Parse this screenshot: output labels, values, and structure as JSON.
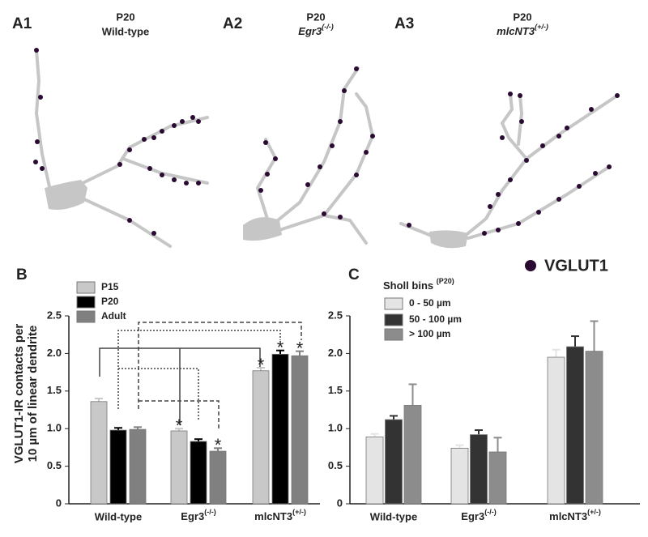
{
  "panels": [
    {
      "label": "A1",
      "line1": "P20",
      "line2": "Wild-type"
    },
    {
      "label": "A2",
      "line1": "P20",
      "line2": "Egr3(-/-)"
    },
    {
      "label": "A3",
      "line1": "P20",
      "line2": "mlcNT3(+/-)"
    }
  ],
  "legend_marker": "VGLUT1",
  "chart_data": [
    {
      "type": "bar",
      "panel_label": "B",
      "ylabel": [
        "VGLUT1-IR contacts per",
        "10 µm of linear dendrite"
      ],
      "categories": [
        "Wild-type",
        "Egr3(-/-)",
        "mlcNT3(+/-)"
      ],
      "series": [
        {
          "name": "P15",
          "color": "#c8c8c8",
          "values": [
            1.36,
            0.97,
            1.77
          ],
          "errors": [
            0.04,
            0.03,
            0.04
          ]
        },
        {
          "name": "P20",
          "color": "#000000",
          "values": [
            0.98,
            0.83,
            1.99
          ],
          "errors": [
            0.03,
            0.03,
            0.05
          ]
        },
        {
          "name": "Adult",
          "color": "#808080",
          "values": [
            0.99,
            0.7,
            1.97
          ],
          "errors": [
            0.03,
            0.04,
            0.06
          ]
        }
      ],
      "annotations": [
        "*",
        "*",
        "*",
        "*",
        "*"
      ],
      "ylim": [
        0,
        2.5
      ],
      "yticks": [
        0,
        0.5,
        {
          "value": 1,
          "label": "1.0"
        },
        1.5,
        {
          "value": 2,
          "label": "2.0"
        },
        2.5
      ]
    },
    {
      "type": "bar",
      "panel_label": "C",
      "legend_title": "Sholl bins (P20)",
      "categories": [
        "Wild-type",
        "Egr3(-/-)",
        "mlcNT3(+/-)"
      ],
      "series": [
        {
          "name": "0 - 50 µm",
          "color": "#e4e4e4",
          "values": [
            0.89,
            0.74,
            1.95
          ],
          "errors": [
            0.04,
            0.04,
            0.1
          ]
        },
        {
          "name": "50 - 100 µm",
          "color": "#333333",
          "values": [
            1.12,
            0.92,
            2.09
          ],
          "errors": [
            0.05,
            0.06,
            0.14
          ]
        },
        {
          "name": "> 100 µm",
          "color": "#8c8c8c",
          "values": [
            1.31,
            0.69,
            2.03
          ],
          "errors": [
            0.28,
            0.19,
            0.4
          ]
        }
      ],
      "ylim": [
        0,
        2.5
      ],
      "yticks": [
        0,
        0.5,
        {
          "value": 1,
          "label": "1.0"
        },
        1.5,
        {
          "value": 2,
          "label": "2.0"
        },
        2.5
      ]
    }
  ]
}
